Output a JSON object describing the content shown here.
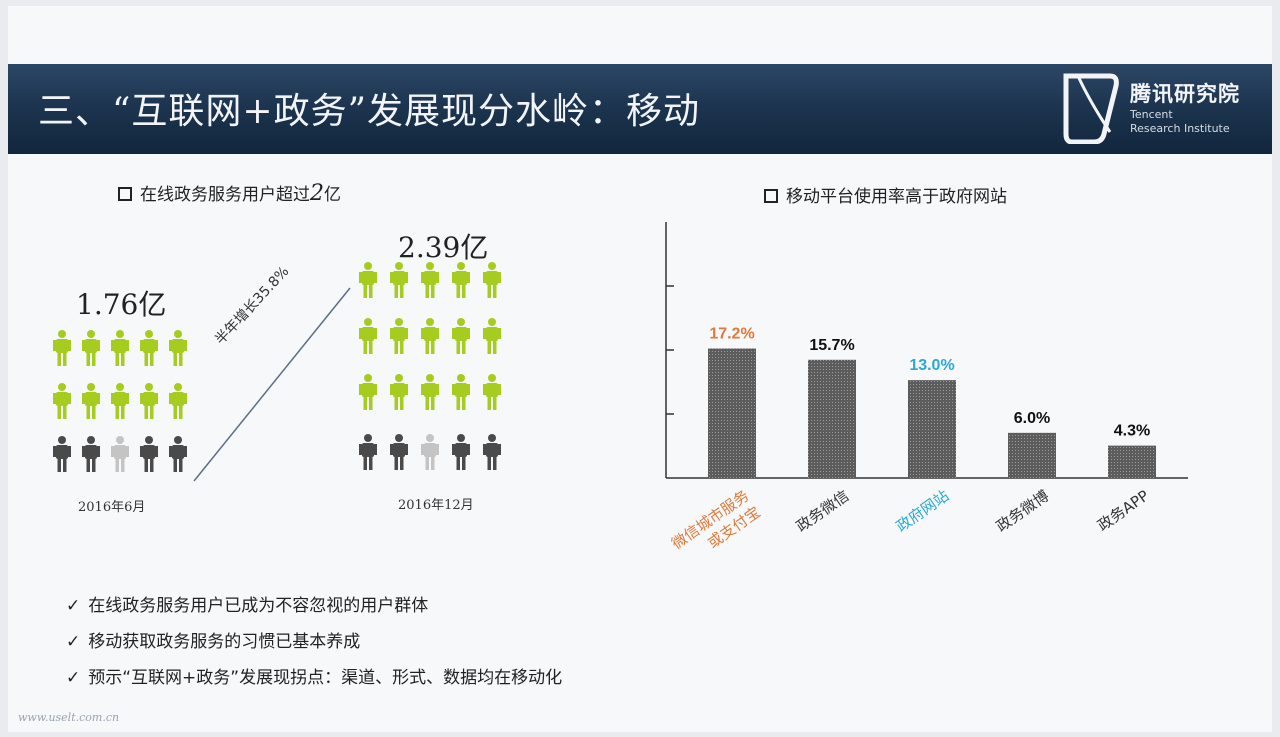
{
  "header": {
    "title": "三、“互联网+政务”发展现分水岭：移动",
    "logo_cn": "腾讯研究院",
    "logo_en_line1": "Tencent",
    "logo_en_line2": "Research Institute"
  },
  "left_panel": {
    "heading_prefix": "在线政务服务用户超过",
    "heading_number": "2",
    "heading_suffix": "亿",
    "before_value": "1.76亿",
    "before_date": "2016年6月",
    "after_value": "2.39亿",
    "after_date": "2016年12月",
    "growth_label": "半年增长35.8%"
  },
  "right_panel": {
    "heading": "移动平台使用率高于政府网站"
  },
  "chart_data": {
    "type": "bar",
    "categories": [
      "微信城市服务或支付宝",
      "政务微信",
      "政府网站",
      "政务微博",
      "政务APP"
    ],
    "category_lines": [
      [
        "微信城市服务",
        "或支付宝"
      ],
      [
        "政务微信"
      ],
      [
        "政府网站"
      ],
      [
        "政务微博"
      ],
      [
        "政务APP"
      ]
    ],
    "values": [
      17.2,
      15.7,
      13.0,
      6.0,
      4.3
    ],
    "value_labels": [
      "17.2%",
      "15.7%",
      "13.0%",
      "6.0%",
      "4.3%"
    ],
    "label_colors": [
      "#e07a3a",
      "#111111",
      "#29a9d6",
      "#111111",
      "#111111"
    ],
    "ylim": [
      0,
      34
    ]
  },
  "bullets": [
    "在线政务服务用户已成为不容忽视的用户群体",
    "移动获取政务服务的习惯已基本养成",
    "预示“互联网+政务”发展现拐点：渠道、形式、数据均在移动化"
  ],
  "colors": {
    "person_green": "#a6cc1f",
    "person_gray": "#4a4a4a",
    "bar": "#6b6b6b"
  },
  "watermark": "www.uselt.com.cn"
}
